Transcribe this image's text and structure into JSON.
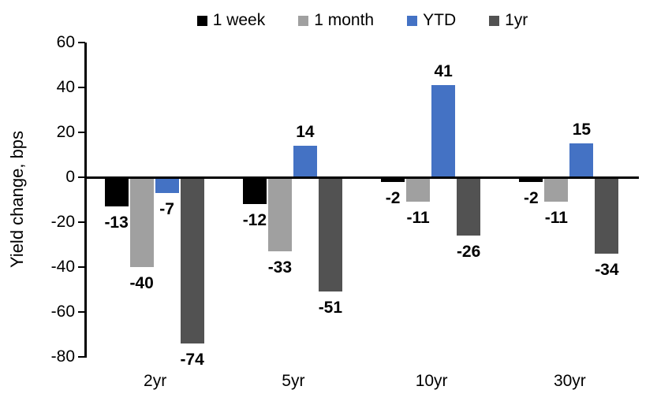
{
  "chart_data": {
    "type": "bar",
    "title": "",
    "ylabel": "Yield change, bps",
    "xlabel": "",
    "categories": [
      "2yr",
      "5yr",
      "10yr",
      "30yr"
    ],
    "series": [
      {
        "name": "1 week",
        "color": "#000000",
        "values": [
          -13,
          -12,
          -2,
          -2
        ]
      },
      {
        "name": "1 month",
        "color": "#A0A0A0",
        "values": [
          -40,
          -33,
          -11,
          -11
        ]
      },
      {
        "name": "YTD",
        "color": "#4472C4",
        "values": [
          -7,
          14,
          41,
          15
        ]
      },
      {
        "name": "1yr",
        "color": "#525252",
        "values": [
          -74,
          -51,
          -26,
          -34
        ]
      }
    ],
    "ylim": [
      -80,
      60
    ],
    "y_ticks": [
      60,
      40,
      20,
      0,
      -20,
      -40,
      -60,
      -80
    ],
    "grid": false,
    "legend_position": "top",
    "data_labels": true,
    "axis_color": "#000000"
  }
}
